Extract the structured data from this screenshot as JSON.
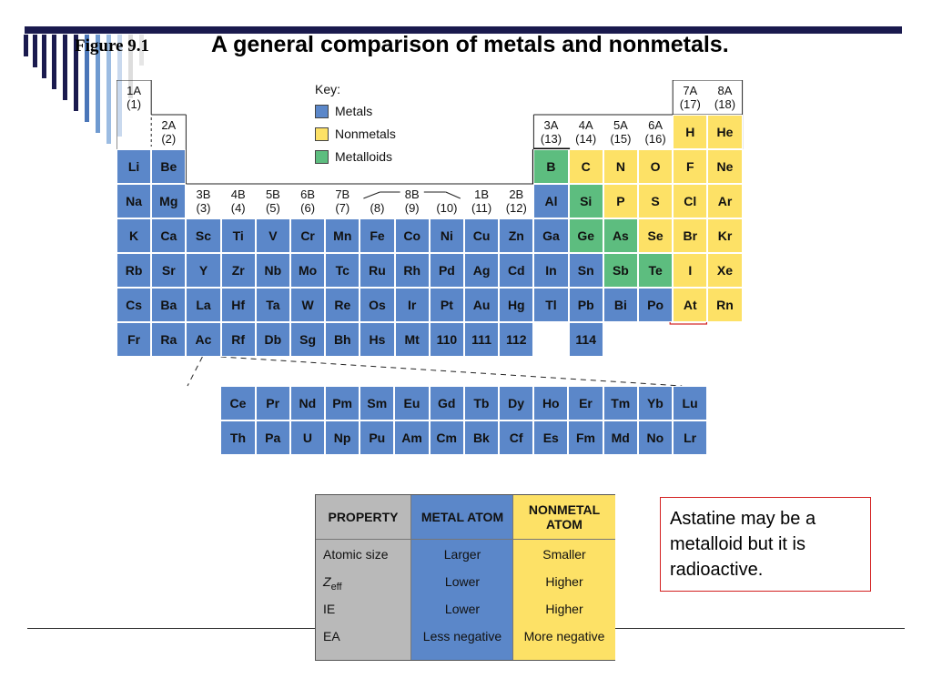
{
  "slide": {
    "figure_label": "Figure 9.1",
    "title": "A general comparison of metals and nonmetals."
  },
  "key": {
    "title": "Key:",
    "items": [
      {
        "label": "Metals",
        "color": "#5b87c9"
      },
      {
        "label": "Nonmetals",
        "color": "#fde166"
      },
      {
        "label": "Metalloids",
        "color": "#5dbd7f"
      }
    ]
  },
  "groups": {
    "g1": [
      "1A",
      "(1)"
    ],
    "g2": [
      "2A",
      "(2)"
    ],
    "g3": [
      "3B",
      "(3)"
    ],
    "g4": [
      "4B",
      "(4)"
    ],
    "g5": [
      "5B",
      "(5)"
    ],
    "g6": [
      "6B",
      "(6)"
    ],
    "g7": [
      "7B",
      "(7)"
    ],
    "g8": [
      "8B"
    ],
    "g8a": [
      "(8)"
    ],
    "g9a": [
      "(9)"
    ],
    "g10a": [
      "(10)"
    ],
    "g11": [
      "1B",
      "(11)"
    ],
    "g12": [
      "2B",
      "(12)"
    ],
    "g13": [
      "3A",
      "(13)"
    ],
    "g14": [
      "4A",
      "(14)"
    ],
    "g15": [
      "5A",
      "(15)"
    ],
    "g16": [
      "6A",
      "(16)"
    ],
    "g17": [
      "7A",
      "(17)"
    ],
    "g18": [
      "8A",
      "(18)"
    ]
  },
  "elements": {
    "row2": [
      "H",
      "He"
    ],
    "row3": [
      "Li",
      "Be",
      "B",
      "C",
      "N",
      "O",
      "F",
      "Ne"
    ],
    "row4": [
      "Na",
      "Mg",
      "Al",
      "Si",
      "P",
      "S",
      "Cl",
      "Ar"
    ],
    "row5": [
      "K",
      "Ca",
      "Sc",
      "Ti",
      "V",
      "Cr",
      "Mn",
      "Fe",
      "Co",
      "Ni",
      "Cu",
      "Zn",
      "Ga",
      "Ge",
      "As",
      "Se",
      "Br",
      "Kr"
    ],
    "row6": [
      "Rb",
      "Sr",
      "Y",
      "Zr",
      "Nb",
      "Mo",
      "Tc",
      "Ru",
      "Rh",
      "Pd",
      "Ag",
      "Cd",
      "In",
      "Sn",
      "Sb",
      "Te",
      "I",
      "Xe"
    ],
    "row7": [
      "Cs",
      "Ba",
      "La",
      "Hf",
      "Ta",
      "W",
      "Re",
      "Os",
      "Ir",
      "Pt",
      "Au",
      "Hg",
      "Tl",
      "Pb",
      "Bi",
      "Po",
      "At",
      "Rn"
    ],
    "row8": [
      "Fr",
      "Ra",
      "Ac",
      "Rf",
      "Db",
      "Sg",
      "Bh",
      "Hs",
      "Mt",
      "110",
      "111",
      "112",
      "114"
    ],
    "lanthanides": [
      "Ce",
      "Pr",
      "Nd",
      "Pm",
      "Sm",
      "Eu",
      "Gd",
      "Tb",
      "Dy",
      "Ho",
      "Er",
      "Tm",
      "Yb",
      "Lu"
    ],
    "actinides": [
      "Th",
      "Pa",
      "U",
      "Np",
      "Pu",
      "Am",
      "Cm",
      "Bk",
      "Cf",
      "Es",
      "Fm",
      "Md",
      "No",
      "Lr"
    ]
  },
  "properties": {
    "headers": [
      "PROPERTY",
      "METAL ATOM",
      "NONMETAL ATOM"
    ],
    "rows": [
      {
        "property": "Atomic size",
        "metal": "Larger",
        "nonmetal": "Smaller"
      },
      {
        "property": "Z",
        "sub": "eff",
        "metal": "Lower",
        "nonmetal": "Higher"
      },
      {
        "property": "IE",
        "metal": "Lower",
        "nonmetal": "Higher"
      },
      {
        "property": "EA",
        "metal": "Less negative",
        "nonmetal": "More negative"
      }
    ],
    "colors": {
      "property": "#b9b9b9",
      "metal": "#5b87c9",
      "nonmetal": "#fde166"
    }
  },
  "note": {
    "text": "Astatine may be a metalloid but it is radioactive.",
    "border_color": "#d32020"
  },
  "colors": {
    "metal": "#5b87c9",
    "nonmetal": "#fde166",
    "metalloid": "#5dbd7f",
    "topbar": "#1a1a4e"
  }
}
